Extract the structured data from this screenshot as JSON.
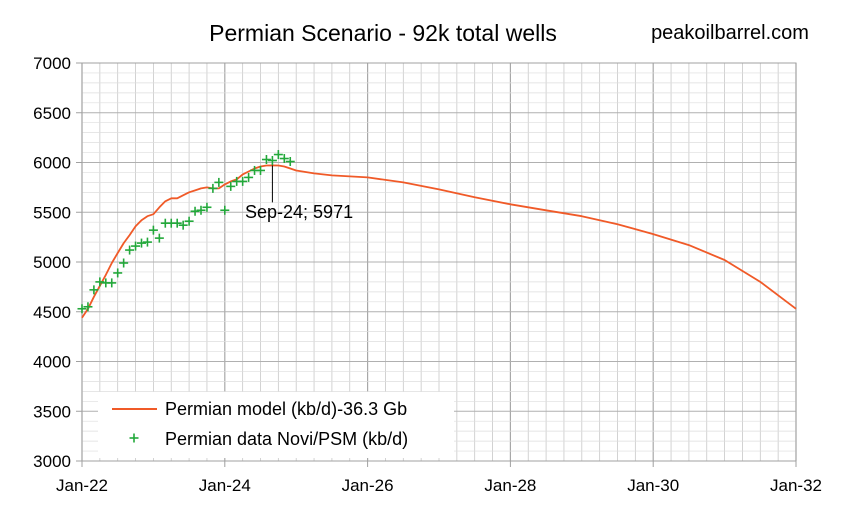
{
  "chart_data": {
    "type": "line",
    "title": "Permian Scenario  - 92k total wells",
    "source_label": "peakoilbarrel.com",
    "xlabel": "",
    "ylabel": "",
    "x_range": [
      "2022-01",
      "2032-01"
    ],
    "x_tick_labels": [
      "Jan-22",
      "Jan-24",
      "Jan-26",
      "Jan-28",
      "Jan-30",
      "Jan-32"
    ],
    "x_ticks": [
      "2022-01",
      "2024-01",
      "2026-01",
      "2028-01",
      "2030-01",
      "2032-01"
    ],
    "ylim": [
      3000,
      7000
    ],
    "y_ticks": [
      3000,
      3500,
      4000,
      4500,
      5000,
      5500,
      6000,
      6500,
      7000
    ],
    "y_tick_labels": [
      "3000",
      "3500",
      "4000",
      "4500",
      "5000",
      "5500",
      "6000",
      "6500",
      "7000"
    ],
    "grid": true,
    "legend_position": "bottom-left",
    "colors": {
      "model": "#f05a28",
      "data": "#22a83a",
      "grid": "#c8c8c8",
      "axis": "#a0a0a0"
    },
    "series": [
      {
        "name": "Permian model (kb/d)-36.3 Gb",
        "kind": "line",
        "x": [
          "2022-01",
          "2022-02",
          "2022-03",
          "2022-04",
          "2022-05",
          "2022-06",
          "2022-07",
          "2022-08",
          "2022-09",
          "2022-10",
          "2022-11",
          "2022-12",
          "2023-01",
          "2023-02",
          "2023-03",
          "2023-04",
          "2023-05",
          "2023-06",
          "2023-07",
          "2023-08",
          "2023-09",
          "2023-10",
          "2023-11",
          "2023-12",
          "2024-01",
          "2024-02",
          "2024-03",
          "2024-04",
          "2024-05",
          "2024-06",
          "2024-07",
          "2024-08",
          "2024-09",
          "2024-10",
          "2024-11",
          "2024-12",
          "2025-01",
          "2025-04",
          "2025-07",
          "2025-10",
          "2026-01",
          "2026-07",
          "2027-01",
          "2027-07",
          "2028-01",
          "2028-07",
          "2029-01",
          "2029-07",
          "2030-01",
          "2030-07",
          "2031-01",
          "2031-07",
          "2032-01"
        ],
        "values": [
          4440,
          4530,
          4650,
          4760,
          4870,
          4990,
          5090,
          5190,
          5270,
          5360,
          5420,
          5460,
          5480,
          5550,
          5610,
          5640,
          5640,
          5670,
          5700,
          5720,
          5740,
          5750,
          5740,
          5740,
          5780,
          5810,
          5830,
          5880,
          5910,
          5940,
          5960,
          5970,
          5971,
          5970,
          5960,
          5940,
          5920,
          5890,
          5870,
          5860,
          5850,
          5800,
          5730,
          5650,
          5580,
          5520,
          5460,
          5380,
          5280,
          5170,
          5020,
          4800,
          4530
        ]
      },
      {
        "name": "Permian data Novi/PSM (kb/d)",
        "kind": "scatter",
        "x": [
          "2022-01",
          "2022-02",
          "2022-03",
          "2022-04",
          "2022-05",
          "2022-06",
          "2022-07",
          "2022-08",
          "2022-09",
          "2022-10",
          "2022-11",
          "2022-12",
          "2023-01",
          "2023-02",
          "2023-03",
          "2023-04",
          "2023-05",
          "2023-06",
          "2023-07",
          "2023-08",
          "2023-09",
          "2023-10",
          "2023-11",
          "2023-12",
          "2024-01",
          "2024-02",
          "2024-03",
          "2024-04",
          "2024-05",
          "2024-06",
          "2024-07",
          "2024-08",
          "2024-09",
          "2024-10",
          "2024-11",
          "2024-12"
        ],
        "values": [
          4530,
          4550,
          4720,
          4800,
          4790,
          4790,
          4890,
          4990,
          5120,
          5160,
          5190,
          5200,
          5320,
          5240,
          5390,
          5390,
          5390,
          5370,
          5410,
          5510,
          5520,
          5550,
          5740,
          5800,
          5520,
          5760,
          5810,
          5810,
          5850,
          5920,
          5920,
          6030,
          6020,
          6080,
          6040,
          6010
        ]
      }
    ],
    "annotations": [
      {
        "x": "2024-09",
        "y": 5971,
        "text": "Sep-24; 5971"
      }
    ]
  }
}
